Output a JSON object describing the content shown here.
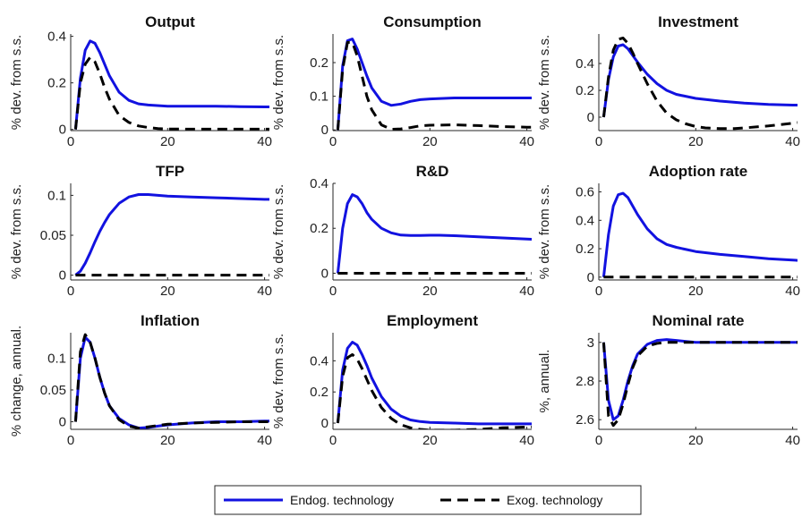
{
  "colors": {
    "endog": "#1212e0",
    "exog": "#000000",
    "axis": "#262626"
  },
  "legend": {
    "placement": "bottom-center",
    "items": [
      {
        "label": "Endog. technology",
        "style": "solid",
        "color": "#1212e0"
      },
      {
        "label": "Exog. technology",
        "style": "dashed",
        "color": "#000000"
      }
    ]
  },
  "chart_data": [
    {
      "type": "line",
      "title": "Output",
      "ylabel": "% dev. from s.s.",
      "xlim": [
        0,
        41
      ],
      "ylim": [
        -0.005,
        0.41
      ],
      "xticks": [
        0,
        20,
        40
      ],
      "yticks": [
        0,
        0.2,
        0.4
      ],
      "series": [
        {
          "name": "Endog. technology",
          "x": [
            1,
            2,
            3,
            4,
            5,
            6,
            7,
            8,
            10,
            12,
            14,
            16,
            20,
            25,
            30,
            35,
            40,
            41
          ],
          "y": [
            0,
            0.22,
            0.34,
            0.38,
            0.37,
            0.33,
            0.28,
            0.23,
            0.16,
            0.125,
            0.11,
            0.105,
            0.1,
            0.1,
            0.1,
            0.098,
            0.097,
            0.097
          ]
        },
        {
          "name": "Exog. technology",
          "x": [
            1,
            2,
            3,
            4,
            5,
            6,
            7,
            8,
            10,
            12,
            14,
            16,
            18,
            20,
            25,
            30,
            35,
            40,
            41
          ],
          "y": [
            0,
            0.2,
            0.28,
            0.31,
            0.29,
            0.24,
            0.18,
            0.13,
            0.06,
            0.03,
            0.015,
            0.008,
            0.004,
            0.002,
            0.001,
            0.001,
            0.001,
            0.001,
            0.001
          ]
        }
      ]
    },
    {
      "type": "line",
      "title": "Consumption",
      "ylabel": "% dev. from s.s.",
      "xlim": [
        0,
        41
      ],
      "ylim": [
        -0.002,
        0.285
      ],
      "xticks": [
        0,
        20,
        40
      ],
      "yticks": [
        0,
        0.1,
        0.2
      ],
      "series": [
        {
          "name": "Endog. technology",
          "x": [
            1,
            2,
            3,
            4,
            5,
            6,
            7,
            8,
            10,
            12,
            14,
            16,
            18,
            20,
            25,
            30,
            35,
            40,
            41
          ],
          "y": [
            0,
            0.19,
            0.265,
            0.27,
            0.24,
            0.2,
            0.16,
            0.125,
            0.085,
            0.073,
            0.077,
            0.085,
            0.09,
            0.092,
            0.095,
            0.095,
            0.095,
            0.095,
            0.095
          ]
        },
        {
          "name": "Exog. technology",
          "x": [
            1,
            2,
            3,
            4,
            5,
            6,
            7,
            8,
            10,
            12,
            14,
            16,
            18,
            20,
            25,
            30,
            35,
            40,
            41
          ],
          "y": [
            0,
            0.18,
            0.26,
            0.26,
            0.22,
            0.16,
            0.1,
            0.06,
            0.015,
            0.002,
            0.003,
            0.007,
            0.012,
            0.014,
            0.015,
            0.013,
            0.01,
            0.008,
            0.008
          ]
        }
      ]
    },
    {
      "type": "line",
      "title": "Investment",
      "ylabel": "% dev. from s.s.",
      "xlim": [
        0,
        41
      ],
      "ylim": [
        -0.1,
        0.62
      ],
      "xticks": [
        0,
        20,
        40
      ],
      "yticks": [
        0,
        0.2,
        0.4
      ],
      "series": [
        {
          "name": "Endog. technology",
          "x": [
            1,
            2,
            3,
            4,
            5,
            6,
            7,
            8,
            10,
            12,
            14,
            16,
            20,
            25,
            30,
            35,
            40,
            41
          ],
          "y": [
            0,
            0.28,
            0.45,
            0.53,
            0.54,
            0.51,
            0.46,
            0.41,
            0.32,
            0.25,
            0.2,
            0.17,
            0.14,
            0.12,
            0.105,
            0.095,
            0.09,
            0.09
          ]
        },
        {
          "name": "Exog. technology",
          "x": [
            1,
            2,
            3,
            4,
            5,
            6,
            7,
            8,
            10,
            12,
            14,
            16,
            18,
            20,
            22,
            25,
            28,
            30,
            35,
            40,
            41
          ],
          "y": [
            0,
            0.3,
            0.5,
            0.58,
            0.59,
            0.55,
            0.48,
            0.4,
            0.25,
            0.12,
            0.03,
            -0.02,
            -0.05,
            -0.07,
            -0.08,
            -0.085,
            -0.085,
            -0.08,
            -0.065,
            -0.045,
            -0.04
          ]
        }
      ]
    },
    {
      "type": "line",
      "title": "TFP",
      "ylabel": "% dev. from s.s.",
      "xlim": [
        0,
        41
      ],
      "ylim": [
        -0.006,
        0.115
      ],
      "xticks": [
        0,
        20,
        40
      ],
      "yticks": [
        0,
        0.05,
        0.1
      ],
      "series": [
        {
          "name": "Endog. technology",
          "x": [
            1,
            2,
            3,
            4,
            5,
            6,
            7,
            8,
            10,
            12,
            14,
            16,
            18,
            20,
            25,
            30,
            35,
            40,
            41
          ],
          "y": [
            0,
            0.005,
            0.015,
            0.028,
            0.042,
            0.055,
            0.066,
            0.076,
            0.09,
            0.098,
            0.101,
            0.101,
            0.1,
            0.099,
            0.098,
            0.097,
            0.096,
            0.095,
            0.095
          ]
        },
        {
          "name": "Exog. technology",
          "x": [
            1,
            41
          ],
          "y": [
            0,
            0
          ]
        }
      ]
    },
    {
      "type": "line",
      "title": "R&D",
      "ylabel": "% dev. from s.s.",
      "xlim": [
        0,
        41
      ],
      "ylim": [
        -0.03,
        0.4
      ],
      "xticks": [
        0,
        20,
        40
      ],
      "yticks": [
        0,
        0.2,
        0.4
      ],
      "series": [
        {
          "name": "Endog. technology",
          "x": [
            1,
            2,
            3,
            4,
            5,
            6,
            7,
            8,
            10,
            12,
            14,
            16,
            18,
            20,
            22,
            25,
            30,
            35,
            40,
            41
          ],
          "y": [
            0,
            0.2,
            0.31,
            0.35,
            0.34,
            0.31,
            0.27,
            0.24,
            0.2,
            0.18,
            0.17,
            0.168,
            0.168,
            0.169,
            0.169,
            0.167,
            0.162,
            0.157,
            0.152,
            0.151
          ]
        },
        {
          "name": "Exog. technology",
          "x": [
            1,
            41
          ],
          "y": [
            0,
            0
          ]
        }
      ]
    },
    {
      "type": "line",
      "title": "Adoption rate",
      "ylabel": "% dev. from s.s.",
      "xlim": [
        0,
        41
      ],
      "ylim": [
        -0.02,
        0.66
      ],
      "xticks": [
        0,
        20,
        40
      ],
      "yticks": [
        0,
        0.2,
        0.4,
        0.6
      ],
      "series": [
        {
          "name": "Endog. technology",
          "x": [
            1,
            2,
            3,
            4,
            5,
            6,
            7,
            8,
            10,
            12,
            14,
            16,
            18,
            20,
            25,
            30,
            35,
            40,
            41
          ],
          "y": [
            0,
            0.3,
            0.5,
            0.58,
            0.59,
            0.56,
            0.5,
            0.44,
            0.34,
            0.27,
            0.23,
            0.21,
            0.195,
            0.18,
            0.16,
            0.145,
            0.13,
            0.12,
            0.118
          ]
        },
        {
          "name": "Exog. technology",
          "x": [
            1,
            41
          ],
          "y": [
            0,
            0
          ]
        }
      ]
    },
    {
      "type": "line",
      "title": "Inflation",
      "ylabel": "% change, annual.",
      "xlim": [
        0,
        41
      ],
      "ylim": [
        -0.012,
        0.14
      ],
      "xticks": [
        0,
        20,
        40
      ],
      "yticks": [
        0,
        0.05,
        0.1
      ],
      "series": [
        {
          "name": "Endog. technology",
          "x": [
            1,
            2,
            3,
            4,
            5,
            6,
            7,
            8,
            10,
            12,
            14,
            16,
            18,
            20,
            25,
            30,
            35,
            40,
            41
          ],
          "y": [
            0,
            0.1,
            0.133,
            0.125,
            0.1,
            0.07,
            0.045,
            0.025,
            0.005,
            -0.005,
            -0.01,
            -0.009,
            -0.007,
            -0.005,
            -0.002,
            0,
            0,
            0.001,
            0.001
          ]
        },
        {
          "name": "Exog. technology",
          "x": [
            1,
            2,
            3,
            4,
            5,
            6,
            7,
            8,
            10,
            12,
            14,
            16,
            18,
            20,
            25,
            30,
            35,
            40,
            41
          ],
          "y": [
            0,
            0.11,
            0.137,
            0.125,
            0.1,
            0.07,
            0.045,
            0.025,
            0.003,
            -0.007,
            -0.01,
            -0.008,
            -0.006,
            -0.004,
            -0.002,
            -0.001,
            0,
            0,
            0
          ]
        }
      ]
    },
    {
      "type": "line",
      "title": "Employment",
      "ylabel": "% dev. from s.s.",
      "xlim": [
        0,
        41
      ],
      "ylim": [
        -0.04,
        0.58
      ],
      "xticks": [
        0,
        20,
        40
      ],
      "yticks": [
        0,
        0.2,
        0.4
      ],
      "series": [
        {
          "name": "Endog. technology",
          "x": [
            1,
            2,
            3,
            4,
            5,
            6,
            7,
            8,
            10,
            12,
            14,
            16,
            18,
            20,
            25,
            30,
            35,
            40,
            41
          ],
          "y": [
            0,
            0.34,
            0.48,
            0.52,
            0.5,
            0.44,
            0.37,
            0.29,
            0.17,
            0.09,
            0.045,
            0.02,
            0.01,
            0.005,
            0,
            -0.005,
            -0.005,
            -0.005,
            -0.005
          ]
        },
        {
          "name": "Exog. technology",
          "x": [
            1,
            2,
            3,
            4,
            5,
            6,
            7,
            8,
            10,
            12,
            14,
            16,
            18,
            20,
            22,
            25,
            30,
            35,
            40,
            41
          ],
          "y": [
            0,
            0.3,
            0.42,
            0.44,
            0.41,
            0.35,
            0.28,
            0.21,
            0.1,
            0.03,
            -0.01,
            -0.03,
            -0.04,
            -0.045,
            -0.045,
            -0.045,
            -0.04,
            -0.03,
            -0.025,
            -0.025
          ]
        }
      ]
    },
    {
      "type": "line",
      "title": "Nominal rate",
      "ylabel": "%, annual.",
      "xlim": [
        0,
        41
      ],
      "ylim": [
        2.55,
        3.05
      ],
      "xticks": [
        0,
        20,
        40
      ],
      "yticks": [
        2.6,
        2.8,
        3
      ],
      "series": [
        {
          "name": "Endog. technology",
          "x": [
            1,
            2,
            3,
            4,
            5,
            6,
            7,
            8,
            10,
            12,
            14,
            16,
            18,
            20,
            25,
            30,
            35,
            40,
            41
          ],
          "y": [
            3,
            2.7,
            2.6,
            2.62,
            2.7,
            2.8,
            2.88,
            2.94,
            2.99,
            3.01,
            3.015,
            3.01,
            3.005,
            3.0,
            3.0,
            3.0,
            3.0,
            3.0,
            3.0
          ]
        },
        {
          "name": "Exog. technology",
          "x": [
            1,
            2,
            3,
            4,
            5,
            6,
            7,
            8,
            10,
            12,
            14,
            16,
            18,
            20,
            25,
            30,
            35,
            40,
            41
          ],
          "y": [
            3,
            2.62,
            2.57,
            2.6,
            2.68,
            2.78,
            2.87,
            2.93,
            2.98,
            2.995,
            3.0,
            3.0,
            3.0,
            3.0,
            3.0,
            3.0,
            3.0,
            3.0,
            3.0
          ]
        }
      ]
    }
  ]
}
